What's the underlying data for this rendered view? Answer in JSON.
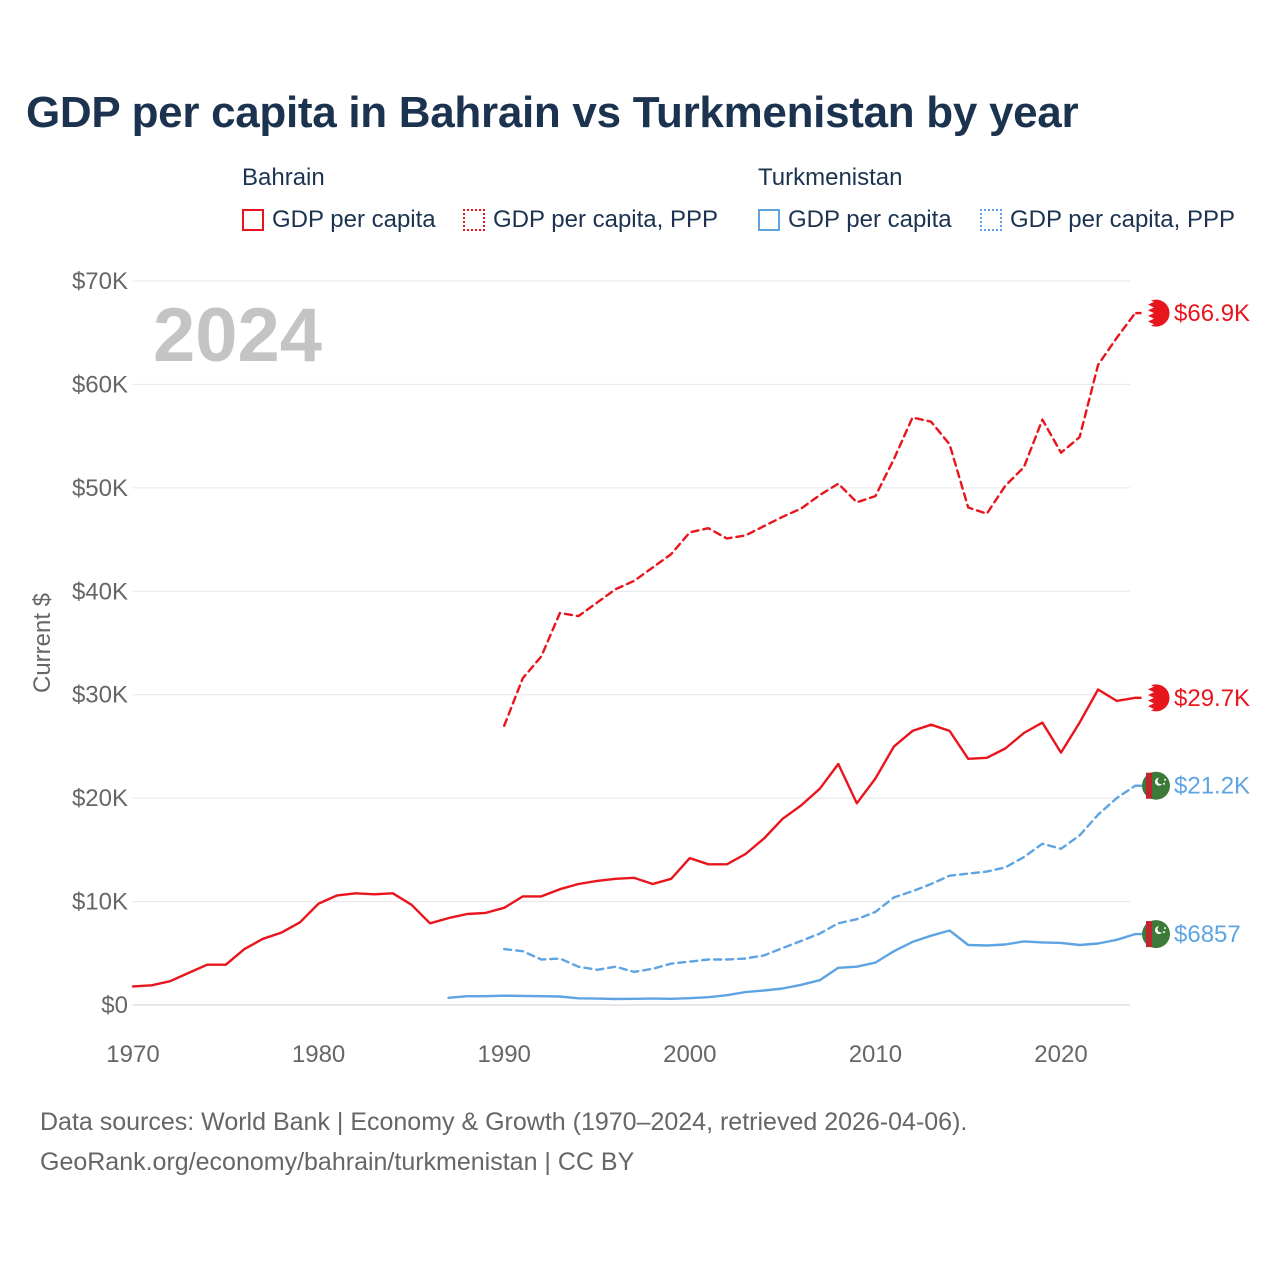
{
  "title": "GDP per capita in Bahrain vs Turkmenistan by year",
  "year_label": "2024",
  "legend": {
    "bahrain": {
      "name": "Bahrain",
      "gdp": "GDP per capita",
      "ppp": "GDP per capita, PPP"
    },
    "turkmenistan": {
      "name": "Turkmenistan",
      "gdp": "GDP per capita",
      "ppp": "GDP per capita, PPP"
    }
  },
  "source": {
    "line1": "Data sources: World Bank | Economy & Growth (1970–2024, retrieved 2026-04-06).",
    "line2": "GeoRank.org/economy/bahrain/turkmenistan | CC BY"
  },
  "colors": {
    "bahrain": "#e8151d",
    "turkmenistan": "#5ea4e3",
    "grid": "#e6e6e6",
    "title": "#1c3350"
  },
  "chart_data": {
    "type": "line",
    "ylabel": "Current $",
    "xlim": [
      1970,
      2025
    ],
    "ylim": [
      0,
      70000
    ],
    "x_ticks": [
      1970,
      1980,
      1990,
      2000,
      2010,
      2020
    ],
    "x_tick_labels": [
      "1970",
      "1980",
      "1990",
      "2000",
      "2010",
      "2020"
    ],
    "y_ticks": [
      0,
      10000,
      20000,
      30000,
      40000,
      50000,
      60000,
      70000
    ],
    "y_tick_labels": [
      "$0",
      "$10K",
      "$20K",
      "$30K",
      "$40K",
      "$50K",
      "$60K",
      "$70K"
    ],
    "series": [
      {
        "name": "Bahrain GDP per capita",
        "country": "bahrain",
        "style": "solid",
        "end_label": "$29.7K",
        "x": [
          1970,
          1971,
          1972,
          1973,
          1974,
          1975,
          1976,
          1977,
          1978,
          1979,
          1980,
          1981,
          1982,
          1983,
          1984,
          1985,
          1986,
          1987,
          1988,
          1989,
          1990,
          1991,
          1992,
          1993,
          1994,
          1995,
          1996,
          1997,
          1998,
          1999,
          2000,
          2001,
          2002,
          2003,
          2004,
          2005,
          2006,
          2007,
          2008,
          2009,
          2010,
          2011,
          2012,
          2013,
          2014,
          2015,
          2016,
          2017,
          2018,
          2019,
          2020,
          2021,
          2022,
          2023,
          2024
        ],
        "values": [
          1800,
          1900,
          2300,
          3100,
          3900,
          3900,
          5400,
          6400,
          7000,
          8000,
          9800,
          10600,
          10800,
          10700,
          10800,
          9700,
          7900,
          8400,
          8800,
          8900,
          9400,
          10500,
          10500,
          11200,
          11700,
          12000,
          12200,
          12300,
          11700,
          12200,
          14200,
          13600,
          13600,
          14600,
          16100,
          18000,
          19300,
          20900,
          23300,
          19500,
          21900,
          25000,
          26500,
          27100,
          26500,
          23800,
          23900,
          24800,
          26300,
          27300,
          24400,
          27300,
          30500,
          29400,
          29700
        ]
      },
      {
        "name": "Bahrain GDP per capita, PPP",
        "country": "bahrain",
        "style": "dashed",
        "end_label": "$66.9K",
        "x": [
          1990,
          1991,
          1992,
          1993,
          1994,
          1995,
          1996,
          1997,
          1998,
          1999,
          2000,
          2001,
          2002,
          2003,
          2004,
          2005,
          2006,
          2007,
          2008,
          2009,
          2010,
          2011,
          2012,
          2013,
          2014,
          2015,
          2016,
          2017,
          2018,
          2019,
          2020,
          2021,
          2022,
          2023,
          2024
        ],
        "values": [
          27000,
          31600,
          33700,
          37900,
          37600,
          38900,
          40200,
          41000,
          42300,
          43600,
          45700,
          46100,
          45100,
          45400,
          46300,
          47200,
          48000,
          49300,
          50400,
          48600,
          49200,
          52800,
          56800,
          56400,
          54200,
          48100,
          47500,
          50200,
          52000,
          56600,
          53400,
          54900,
          61900,
          64500,
          66900
        ]
      },
      {
        "name": "Turkmenistan GDP per capita",
        "country": "turkmenistan",
        "style": "solid",
        "end_label": "$6857",
        "x": [
          1987,
          1988,
          1989,
          1990,
          1991,
          1992,
          1993,
          1994,
          1995,
          1996,
          1997,
          1998,
          1999,
          2000,
          2001,
          2002,
          2003,
          2004,
          2005,
          2006,
          2007,
          2008,
          2009,
          2010,
          2011,
          2012,
          2013,
          2014,
          2015,
          2016,
          2017,
          2018,
          2019,
          2020,
          2021,
          2022,
          2023,
          2024
        ],
        "values": [
          700,
          850,
          850,
          900,
          880,
          850,
          820,
          650,
          620,
          580,
          600,
          620,
          600,
          660,
          750,
          950,
          1250,
          1400,
          1600,
          1950,
          2400,
          3600,
          3700,
          4100,
          5200,
          6100,
          6700,
          7200,
          5800,
          5750,
          5850,
          6150,
          6050,
          6000,
          5800,
          5950,
          6300,
          6857
        ]
      },
      {
        "name": "Turkmenistan GDP per capita, PPP",
        "country": "turkmenistan",
        "style": "dashed",
        "end_label": "$21.2K",
        "x": [
          1990,
          1991,
          1992,
          1993,
          1994,
          1995,
          1996,
          1997,
          1998,
          1999,
          2000,
          2001,
          2002,
          2003,
          2004,
          2005,
          2006,
          2007,
          2008,
          2009,
          2010,
          2011,
          2012,
          2013,
          2014,
          2015,
          2016,
          2017,
          2018,
          2019,
          2020,
          2021,
          2022,
          2023,
          2024
        ],
        "values": [
          5400,
          5200,
          4400,
          4500,
          3700,
          3400,
          3700,
          3200,
          3500,
          4000,
          4200,
          4400,
          4400,
          4500,
          4800,
          5500,
          6200,
          6900,
          7900,
          8300,
          9000,
          10400,
          11000,
          11700,
          12500,
          12700,
          12900,
          13300,
          14300,
          15600,
          15100,
          16400,
          18400,
          20000,
          21200
        ]
      }
    ]
  }
}
